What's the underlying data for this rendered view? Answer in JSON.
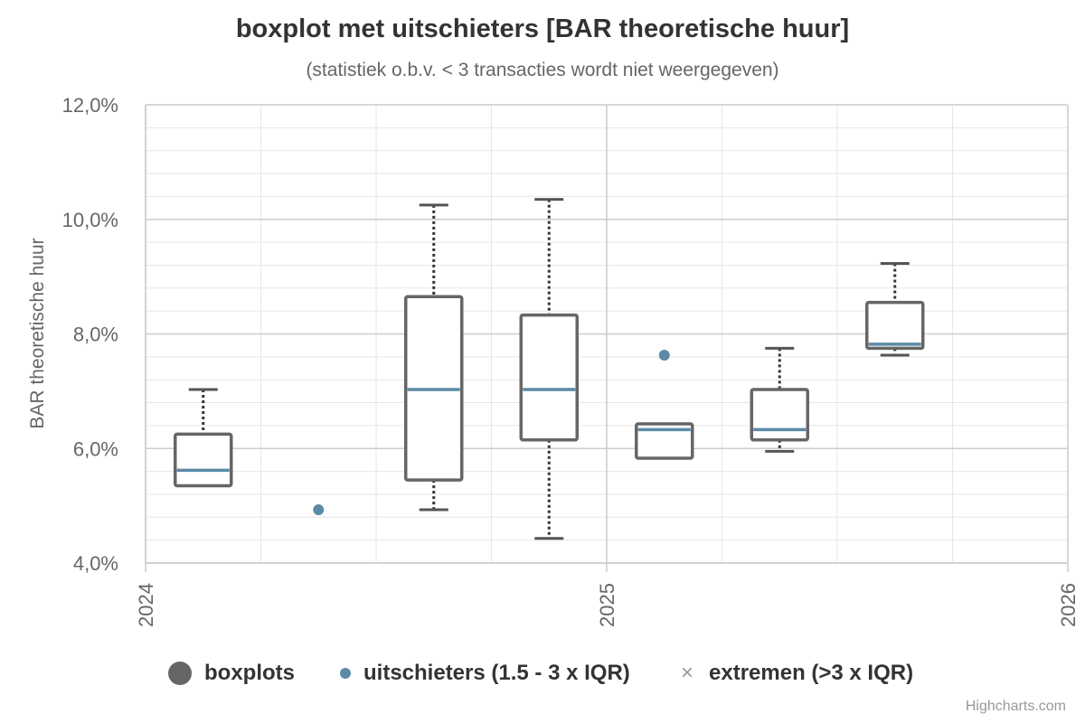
{
  "chart_data": {
    "type": "boxplot",
    "title": "boxplot met uitschieters [BAR theoretische huur]",
    "subtitle": "(statistiek o.b.v. < 3 transacties wordt niet weergegeven)",
    "ylabel": "BAR theoretische huur",
    "ylim": [
      4.0,
      12.0
    ],
    "yticks": [
      "4,0%",
      "6,0%",
      "8,0%",
      "10,0%",
      "12,0%"
    ],
    "ytick_values": [
      4,
      6,
      8,
      10,
      12
    ],
    "xlim": [
      2024.0,
      2026.0
    ],
    "xticks": [
      "2024",
      "2025",
      "2026"
    ],
    "xtick_values": [
      2024,
      2025,
      2026
    ],
    "grid": true,
    "legend_position": "bottom",
    "series": [
      {
        "name": "boxplots",
        "color": "#666666",
        "median_color": "#5b8aa6",
        "boxes": [
          {
            "x": 2024.125,
            "low": 5.35,
            "q1": 5.35,
            "median": 5.62,
            "q3": 6.25,
            "high": 7.03
          },
          {
            "x": 2024.625,
            "low": 4.93,
            "q1": 5.45,
            "median": 7.03,
            "q3": 8.65,
            "high": 10.25
          },
          {
            "x": 2024.875,
            "low": 4.43,
            "q1": 6.15,
            "median": 7.03,
            "q3": 8.33,
            "high": 10.35
          },
          {
            "x": 2025.125,
            "low": 5.83,
            "q1": 5.83,
            "median": 6.33,
            "q3": 6.43,
            "high": 6.43
          },
          {
            "x": 2025.375,
            "low": 5.95,
            "q1": 6.15,
            "median": 6.33,
            "q3": 7.03,
            "high": 7.75
          },
          {
            "x": 2025.625,
            "low": 7.63,
            "q1": 7.75,
            "median": 7.82,
            "q3": 8.55,
            "high": 9.23
          }
        ]
      },
      {
        "name": "uitschieters (1.5 - 3 x IQR)",
        "color": "#5b8aa6",
        "points": [
          {
            "x": 2024.375,
            "y": 4.93
          },
          {
            "x": 2025.125,
            "y": 7.63
          }
        ]
      },
      {
        "name": "extremen (>3 x IQR)",
        "color": "#999999",
        "points": []
      }
    ]
  },
  "credits": "Highcharts.com"
}
